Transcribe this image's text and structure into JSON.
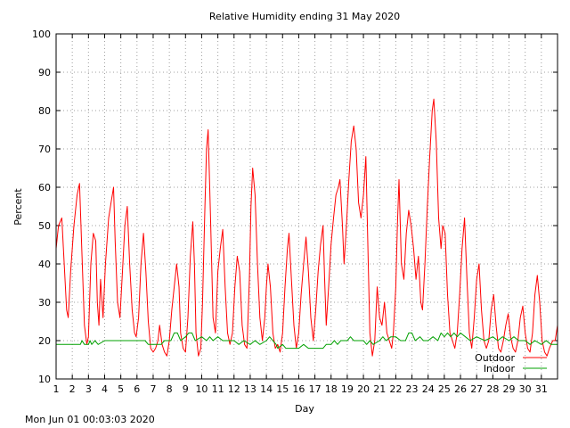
{
  "chart_data": {
    "type": "line",
    "title": "Relative Humidity ending 31 May 2020",
    "xlabel": "Day",
    "ylabel": "Percent",
    "footer": "Mon Jun 01 00:03:03 2020",
    "xlim": [
      1,
      32
    ],
    "ylim": [
      10,
      100
    ],
    "yticks": [
      10,
      20,
      30,
      40,
      50,
      60,
      70,
      80,
      90,
      100
    ],
    "xticks": [
      "1",
      "2",
      "3",
      "4",
      "5",
      "6",
      "7",
      "8",
      "9",
      "10",
      "11",
      "12",
      "13",
      "14",
      "15",
      "16",
      "17",
      "18",
      "19",
      "20",
      "21",
      "22",
      "23",
      "24",
      "25",
      "26",
      "27",
      "28",
      "29",
      "30",
      "31"
    ],
    "grid": true,
    "legend_position": "bottom-right",
    "series": [
      {
        "name": "Outdoor",
        "color": "#ff0000",
        "points": [
          [
            1.0,
            44
          ],
          [
            1.15,
            50
          ],
          [
            1.35,
            52
          ],
          [
            1.5,
            40
          ],
          [
            1.65,
            28
          ],
          [
            1.75,
            26
          ],
          [
            1.9,
            38
          ],
          [
            2.1,
            50
          ],
          [
            2.3,
            58
          ],
          [
            2.45,
            61
          ],
          [
            2.6,
            42
          ],
          [
            2.75,
            24
          ],
          [
            2.9,
            19
          ],
          [
            3.0,
            21
          ],
          [
            3.15,
            40
          ],
          [
            3.3,
            48
          ],
          [
            3.45,
            46
          ],
          [
            3.55,
            30
          ],
          [
            3.65,
            24
          ],
          [
            3.75,
            36
          ],
          [
            3.9,
            26
          ],
          [
            4.05,
            40
          ],
          [
            4.25,
            52
          ],
          [
            4.4,
            56
          ],
          [
            4.55,
            60
          ],
          [
            4.65,
            46
          ],
          [
            4.8,
            30
          ],
          [
            4.95,
            26
          ],
          [
            5.1,
            38
          ],
          [
            5.25,
            50
          ],
          [
            5.4,
            55
          ],
          [
            5.55,
            40
          ],
          [
            5.7,
            28
          ],
          [
            5.85,
            22
          ],
          [
            5.95,
            21
          ],
          [
            6.1,
            26
          ],
          [
            6.25,
            40
          ],
          [
            6.4,
            48
          ],
          [
            6.55,
            38
          ],
          [
            6.7,
            25
          ],
          [
            6.85,
            18
          ],
          [
            7.0,
            17
          ],
          [
            7.15,
            18
          ],
          [
            7.3,
            20
          ],
          [
            7.4,
            24
          ],
          [
            7.55,
            19
          ],
          [
            7.7,
            17
          ],
          [
            7.85,
            16
          ],
          [
            8.0,
            20
          ],
          [
            8.15,
            28
          ],
          [
            8.3,
            34
          ],
          [
            8.45,
            40
          ],
          [
            8.6,
            34
          ],
          [
            8.7,
            22
          ],
          [
            8.85,
            18
          ],
          [
            9.0,
            17
          ],
          [
            9.15,
            26
          ],
          [
            9.3,
            42
          ],
          [
            9.45,
            51
          ],
          [
            9.55,
            40
          ],
          [
            9.65,
            22
          ],
          [
            9.8,
            16
          ],
          [
            9.95,
            18
          ],
          [
            10.05,
            30
          ],
          [
            10.2,
            55
          ],
          [
            10.3,
            70
          ],
          [
            10.4,
            75
          ],
          [
            10.55,
            52
          ],
          [
            10.7,
            26
          ],
          [
            10.85,
            22
          ],
          [
            11.0,
            38
          ],
          [
            11.15,
            44
          ],
          [
            11.3,
            49
          ],
          [
            11.45,
            34
          ],
          [
            11.6,
            22
          ],
          [
            11.75,
            19
          ],
          [
            11.9,
            22
          ],
          [
            12.05,
            34
          ],
          [
            12.2,
            42
          ],
          [
            12.35,
            38
          ],
          [
            12.5,
            24
          ],
          [
            12.65,
            19
          ],
          [
            12.8,
            18
          ],
          [
            12.95,
            36
          ],
          [
            13.05,
            55
          ],
          [
            13.15,
            65
          ],
          [
            13.3,
            58
          ],
          [
            13.45,
            40
          ],
          [
            13.6,
            26
          ],
          [
            13.75,
            20
          ],
          [
            13.9,
            26
          ],
          [
            14.0,
            34
          ],
          [
            14.1,
            40
          ],
          [
            14.25,
            34
          ],
          [
            14.4,
            22
          ],
          [
            14.55,
            18
          ],
          [
            14.7,
            19
          ],
          [
            14.85,
            17
          ],
          [
            15.0,
            22
          ],
          [
            15.15,
            34
          ],
          [
            15.3,
            44
          ],
          [
            15.4,
            48
          ],
          [
            15.55,
            36
          ],
          [
            15.7,
            24
          ],
          [
            15.85,
            18
          ],
          [
            16.0,
            22
          ],
          [
            16.15,
            32
          ],
          [
            16.3,
            40
          ],
          [
            16.45,
            47
          ],
          [
            16.6,
            38
          ],
          [
            16.75,
            26
          ],
          [
            16.9,
            20
          ],
          [
            17.05,
            28
          ],
          [
            17.2,
            38
          ],
          [
            17.35,
            45
          ],
          [
            17.5,
            50
          ],
          [
            17.6,
            36
          ],
          [
            17.7,
            24
          ],
          [
            17.85,
            34
          ],
          [
            18.0,
            45
          ],
          [
            18.15,
            52
          ],
          [
            18.3,
            58
          ],
          [
            18.45,
            60
          ],
          [
            18.55,
            62
          ],
          [
            18.7,
            50
          ],
          [
            18.8,
            40
          ],
          [
            18.95,
            50
          ],
          [
            19.1,
            62
          ],
          [
            19.25,
            72
          ],
          [
            19.4,
            76
          ],
          [
            19.55,
            70
          ],
          [
            19.7,
            56
          ],
          [
            19.85,
            52
          ],
          [
            20.0,
            58
          ],
          [
            20.15,
            68
          ],
          [
            20.3,
            40
          ],
          [
            20.4,
            22
          ],
          [
            20.55,
            16
          ],
          [
            20.7,
            20
          ],
          [
            20.85,
            34
          ],
          [
            21.0,
            26
          ],
          [
            21.15,
            24
          ],
          [
            21.3,
            30
          ],
          [
            21.45,
            22
          ],
          [
            21.6,
            20
          ],
          [
            21.75,
            18
          ],
          [
            21.85,
            22
          ],
          [
            22.0,
            34
          ],
          [
            22.1,
            50
          ],
          [
            22.2,
            62
          ],
          [
            22.35,
            40
          ],
          [
            22.5,
            36
          ],
          [
            22.65,
            48
          ],
          [
            22.8,
            54
          ],
          [
            22.95,
            50
          ],
          [
            23.1,
            44
          ],
          [
            23.25,
            36
          ],
          [
            23.4,
            42
          ],
          [
            23.55,
            30
          ],
          [
            23.65,
            28
          ],
          [
            23.8,
            40
          ],
          [
            23.95,
            55
          ],
          [
            24.1,
            68
          ],
          [
            24.25,
            80
          ],
          [
            24.35,
            83
          ],
          [
            24.5,
            72
          ],
          [
            24.65,
            52
          ],
          [
            24.8,
            44
          ],
          [
            24.9,
            50
          ],
          [
            25.05,
            48
          ],
          [
            25.2,
            32
          ],
          [
            25.35,
            22
          ],
          [
            25.5,
            20
          ],
          [
            25.65,
            18
          ],
          [
            25.8,
            22
          ],
          [
            25.95,
            32
          ],
          [
            26.1,
            44
          ],
          [
            26.25,
            52
          ],
          [
            26.4,
            36
          ],
          [
            26.55,
            22
          ],
          [
            26.7,
            18
          ],
          [
            26.85,
            26
          ],
          [
            27.0,
            36
          ],
          [
            27.15,
            40
          ],
          [
            27.3,
            28
          ],
          [
            27.45,
            20
          ],
          [
            27.6,
            18
          ],
          [
            27.75,
            20
          ],
          [
            27.9,
            28
          ],
          [
            28.05,
            32
          ],
          [
            28.2,
            24
          ],
          [
            28.35,
            18
          ],
          [
            28.5,
            17
          ],
          [
            28.65,
            20
          ],
          [
            28.8,
            24
          ],
          [
            28.95,
            27
          ],
          [
            29.1,
            21
          ],
          [
            29.25,
            18
          ],
          [
            29.4,
            17
          ],
          [
            29.55,
            20
          ],
          [
            29.7,
            26
          ],
          [
            29.85,
            29
          ],
          [
            30.0,
            22
          ],
          [
            30.15,
            18
          ],
          [
            30.3,
            17
          ],
          [
            30.45,
            22
          ],
          [
            30.6,
            32
          ],
          [
            30.75,
            37
          ],
          [
            30.9,
            30
          ],
          [
            31.05,
            20
          ],
          [
            31.2,
            17
          ],
          [
            31.35,
            16
          ],
          [
            31.5,
            18
          ],
          [
            31.7,
            20
          ],
          [
            31.85,
            20
          ],
          [
            32.0,
            24
          ]
        ]
      },
      {
        "name": "Indoor",
        "color": "#00a000",
        "points": [
          [
            1.0,
            19
          ],
          [
            2.5,
            19
          ],
          [
            2.6,
            20
          ],
          [
            2.75,
            19
          ],
          [
            3.0,
            19
          ],
          [
            3.1,
            20
          ],
          [
            3.2,
            19
          ],
          [
            3.4,
            20
          ],
          [
            3.6,
            19
          ],
          [
            4.0,
            20
          ],
          [
            6.5,
            20
          ],
          [
            6.7,
            19
          ],
          [
            7.5,
            19
          ],
          [
            7.7,
            20
          ],
          [
            8.1,
            20
          ],
          [
            8.3,
            22
          ],
          [
            8.5,
            22
          ],
          [
            8.7,
            20
          ],
          [
            9.0,
            21
          ],
          [
            9.2,
            22
          ],
          [
            9.4,
            22
          ],
          [
            9.6,
            20
          ],
          [
            10.0,
            21
          ],
          [
            10.3,
            20
          ],
          [
            10.5,
            21
          ],
          [
            10.7,
            20
          ],
          [
            11.0,
            21
          ],
          [
            11.3,
            20
          ],
          [
            12.0,
            20
          ],
          [
            12.3,
            19
          ],
          [
            12.6,
            20
          ],
          [
            13.0,
            19
          ],
          [
            13.3,
            20
          ],
          [
            13.6,
            19
          ],
          [
            14.0,
            20
          ],
          [
            14.2,
            21
          ],
          [
            14.4,
            20
          ],
          [
            14.6,
            19
          ],
          [
            14.7,
            18
          ],
          [
            15.0,
            19
          ],
          [
            15.2,
            18
          ],
          [
            16.0,
            18
          ],
          [
            16.3,
            19
          ],
          [
            16.6,
            18
          ],
          [
            17.5,
            18
          ],
          [
            17.7,
            19
          ],
          [
            18.0,
            19
          ],
          [
            18.2,
            20
          ],
          [
            18.4,
            19
          ],
          [
            18.6,
            20
          ],
          [
            19.0,
            20
          ],
          [
            19.2,
            21
          ],
          [
            19.4,
            20
          ],
          [
            20.0,
            20
          ],
          [
            20.2,
            19
          ],
          [
            20.4,
            20
          ],
          [
            20.6,
            19
          ],
          [
            21.0,
            20
          ],
          [
            21.2,
            21
          ],
          [
            21.4,
            20
          ],
          [
            21.7,
            21
          ],
          [
            22.0,
            21
          ],
          [
            22.3,
            20
          ],
          [
            22.6,
            20
          ],
          [
            22.8,
            22
          ],
          [
            23.0,
            22
          ],
          [
            23.2,
            20
          ],
          [
            23.5,
            21
          ],
          [
            23.7,
            20
          ],
          [
            24.0,
            20
          ],
          [
            24.3,
            21
          ],
          [
            24.6,
            20
          ],
          [
            24.8,
            22
          ],
          [
            25.0,
            21
          ],
          [
            25.2,
            22
          ],
          [
            25.4,
            21
          ],
          [
            25.6,
            22
          ],
          [
            25.8,
            21
          ],
          [
            26.0,
            22
          ],
          [
            26.3,
            21
          ],
          [
            26.6,
            20
          ],
          [
            27.0,
            21
          ],
          [
            27.5,
            20
          ],
          [
            28.0,
            21
          ],
          [
            28.3,
            20
          ],
          [
            28.6,
            21
          ],
          [
            29.0,
            20
          ],
          [
            29.3,
            21
          ],
          [
            29.6,
            20
          ],
          [
            30.0,
            20
          ],
          [
            30.3,
            19
          ],
          [
            30.6,
            20
          ],
          [
            31.0,
            19
          ],
          [
            31.3,
            20
          ],
          [
            31.6,
            19
          ],
          [
            32.0,
            19
          ]
        ]
      }
    ]
  }
}
